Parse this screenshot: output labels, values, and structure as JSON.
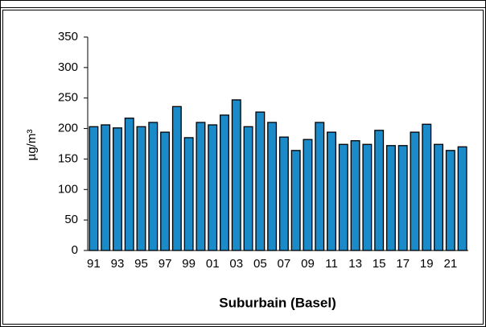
{
  "chart_data": {
    "type": "bar",
    "y_label": "µg/m³",
    "x_label": "Suburbain (Basel)",
    "categories": [
      "91",
      null,
      "93",
      null,
      "95",
      null,
      "97",
      null,
      "99",
      null,
      "01",
      null,
      "03",
      null,
      "05",
      null,
      "07",
      null,
      "09",
      null,
      "11",
      null,
      "13",
      null,
      "15",
      null,
      "17",
      null,
      "19",
      null,
      "21",
      null
    ],
    "values": [
      203,
      206,
      201,
      217,
      203,
      210,
      194,
      236,
      185,
      210,
      206,
      222,
      247,
      203,
      227,
      210,
      186,
      164,
      182,
      210,
      194,
      174,
      180,
      174,
      197,
      172,
      172,
      194,
      207,
      174,
      164,
      170
    ],
    "color": "#1a8ac8",
    "ylim": [
      0,
      350
    ],
    "yticks": [
      0,
      50,
      100,
      150,
      200,
      250,
      300,
      350
    ]
  }
}
